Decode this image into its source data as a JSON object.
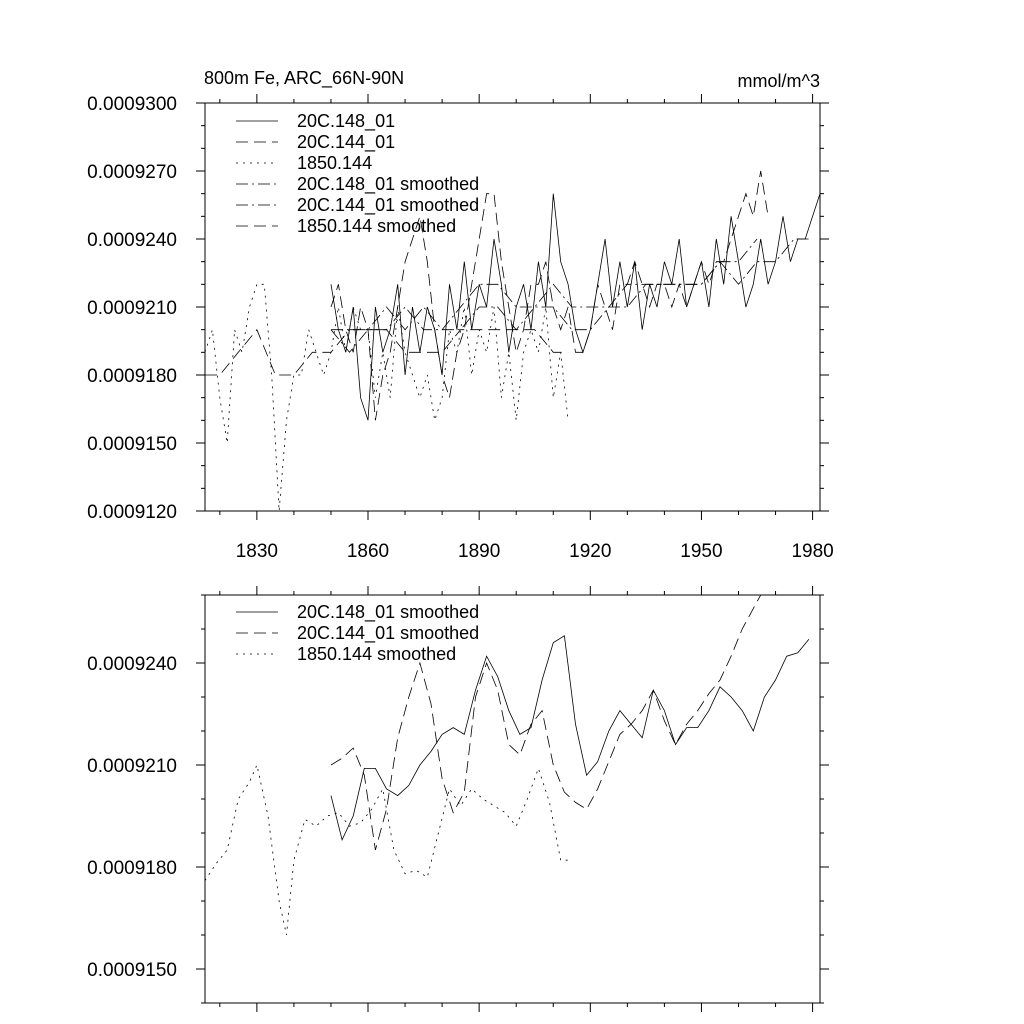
{
  "chart_data": [
    {
      "type": "line",
      "title": "800m Fe, ARC_66N-90N",
      "units": "mmol/m^3",
      "xlim": [
        1816,
        1982
      ],
      "ylim": [
        0.000912,
        0.00093
      ],
      "xticks": [
        1830,
        1860,
        1890,
        1920,
        1950,
        1980
      ],
      "xtick_labels": [
        "1830",
        "1860",
        "1890",
        "1920",
        "1950",
        "1980"
      ],
      "yticks": [
        0.000912,
        0.000915,
        0.000918,
        0.000921,
        0.000924,
        0.000927,
        0.00093
      ],
      "ytick_labels": [
        "0.0009120",
        "0.0009150",
        "0.0009180",
        "0.0009210",
        "0.0009240",
        "0.0009270",
        "0.0009300"
      ],
      "legend": [
        {
          "label": "20C.148_01",
          "dash": "solid"
        },
        {
          "label": "20C.144_01",
          "dash": "long"
        },
        {
          "label": "1850.144",
          "dash": "dot"
        },
        {
          "label": "20C.148_01 smoothed",
          "dash": "dashdot"
        },
        {
          "label": "20C.144_01 smoothed",
          "dash": "dashdot"
        },
        {
          "label": "1850.144 smoothed",
          "dash": "long"
        }
      ],
      "series": [
        {
          "name": "20C.148_01",
          "dash": "solid",
          "x": [
            1850,
            1852,
            1854,
            1856,
            1858,
            1860,
            1862,
            1864,
            1866,
            1868,
            1870,
            1872,
            1874,
            1876,
            1878,
            1880,
            1882,
            1884,
            1886,
            1888,
            1890,
            1892,
            1894,
            1896,
            1898,
            1900,
            1902,
            1904,
            1906,
            1908,
            1910,
            1912,
            1914,
            1916,
            1918,
            1920,
            1922,
            1924,
            1926,
            1928,
            1930,
            1932,
            1934,
            1936,
            1938,
            1940,
            1942,
            1944,
            1946,
            1948,
            1950,
            1952,
            1954,
            1956,
            1958,
            1960,
            1962,
            1964,
            1966,
            1968,
            1970,
            1972,
            1974,
            1976,
            1978,
            1980,
            1982
          ],
          "y": [
            0.000922,
            0.00092,
            0.000919,
            0.000921,
            0.000917,
            0.000916,
            0.000921,
            0.000919,
            0.00092,
            0.000922,
            0.000918,
            0.000921,
            0.000919,
            0.000921,
            0.00092,
            0.000918,
            0.000922,
            0.00092,
            0.000923,
            0.00092,
            0.000922,
            0.000921,
            0.000924,
            0.000922,
            0.000919,
            0.000921,
            0.000922,
            0.00092,
            0.000923,
            0.000921,
            0.000926,
            0.000923,
            0.000922,
            0.00092,
            0.000919,
            0.00092,
            0.000922,
            0.000924,
            0.000921,
            0.000923,
            0.000921,
            0.000923,
            0.00092,
            0.000922,
            0.000921,
            0.000923,
            0.000922,
            0.000924,
            0.000921,
            0.000922,
            0.000923,
            0.000921,
            0.000924,
            0.000922,
            0.000925,
            0.000923,
            0.000921,
            0.000922,
            0.000924,
            0.000922,
            0.000923,
            0.000925,
            0.000923,
            0.000924,
            0.000924,
            0.000925,
            0.000926
          ]
        },
        {
          "name": "20C.144_01",
          "dash": "long",
          "x": [
            1850,
            1852,
            1854,
            1856,
            1858,
            1860,
            1862,
            1864,
            1866,
            1868,
            1870,
            1872,
            1874,
            1876,
            1878,
            1880,
            1882,
            1884,
            1886,
            1888,
            1890,
            1892,
            1894,
            1896,
            1898,
            1900,
            1902,
            1904,
            1906,
            1908,
            1910,
            1912,
            1914,
            1916,
            1918,
            1920,
            1922,
            1924,
            1926,
            1928,
            1930,
            1932,
            1934,
            1936,
            1938,
            1940,
            1942,
            1944,
            1946,
            1948,
            1950,
            1952,
            1954,
            1956,
            1958,
            1960,
            1962,
            1964,
            1966,
            1968
          ],
          "y": [
            0.000921,
            0.000922,
            0.00092,
            0.000919,
            0.000921,
            0.00092,
            0.000916,
            0.000918,
            0.000919,
            0.000921,
            0.000923,
            0.000924,
            0.000925,
            0.000923,
            0.00092,
            0.000918,
            0.000917,
            0.000919,
            0.00092,
            0.000922,
            0.000924,
            0.000926,
            0.000926,
            0.000923,
            0.000921,
            0.000919,
            0.00092,
            0.000922,
            0.000922,
            0.000923,
            0.000921,
            0.00092,
            0.000921,
            0.000919,
            0.000919,
            0.00092,
            0.000922,
            0.000921,
            0.00092,
            0.000922,
            0.000922,
            0.000923,
            0.000922,
            0.000921,
            0.000922,
            0.000922,
            0.000921,
            0.000922,
            0.000921,
            0.000922,
            0.000923,
            0.000922,
            0.000923,
            0.000923,
            0.000924,
            0.000925,
            0.000926,
            0.000925,
            0.000927,
            0.000925
          ]
        },
        {
          "name": "1850.144",
          "dash": "dot",
          "x": [
            1816,
            1818,
            1820,
            1822,
            1824,
            1826,
            1828,
            1830,
            1832,
            1834,
            1836,
            1838,
            1840,
            1842,
            1844,
            1846,
            1848,
            1850,
            1852,
            1854,
            1856,
            1858,
            1860,
            1862,
            1864,
            1866,
            1868,
            1870,
            1872,
            1874,
            1876,
            1878,
            1880,
            1882,
            1884,
            1886,
            1888,
            1890,
            1892,
            1894,
            1896,
            1898,
            1900,
            1902,
            1904,
            1906,
            1908,
            1910,
            1912,
            1914
          ],
          "y": [
            0.000919,
            0.00092,
            0.000917,
            0.000915,
            0.00092,
            0.000919,
            0.000921,
            0.000922,
            0.000922,
            0.000918,
            0.000912,
            0.000916,
            0.000918,
            0.000918,
            0.00092,
            0.000919,
            0.000918,
            0.000919,
            0.000921,
            0.000919,
            0.000921,
            0.00092,
            0.00092,
            0.000917,
            0.000919,
            0.000917,
            0.000921,
            0.000919,
            0.000918,
            0.000917,
            0.000918,
            0.000916,
            0.000917,
            0.00092,
            0.000919,
            0.000921,
            0.000918,
            0.00092,
            0.000919,
            0.000921,
            0.000917,
            0.000919,
            0.000916,
            0.000919,
            0.00092,
            0.000919,
            0.000921,
            0.000917,
            0.000919,
            0.000916
          ]
        },
        {
          "name": "20C.148_01 smoothed",
          "dash": "dashdot",
          "x": [
            1850,
            1855,
            1860,
            1865,
            1870,
            1875,
            1880,
            1885,
            1890,
            1895,
            1900,
            1905,
            1910,
            1915,
            1920,
            1925,
            1930,
            1935,
            1940,
            1945,
            1950,
            1955,
            1960,
            1965,
            1970,
            1975,
            1980
          ],
          "y": [
            0.00092,
            0.000919,
            0.00092,
            0.00092,
            0.000921,
            0.00092,
            0.00092,
            0.000921,
            0.000922,
            0.000922,
            0.000921,
            0.000921,
            0.000922,
            0.000921,
            0.000921,
            0.000921,
            0.000922,
            0.000922,
            0.000922,
            0.000922,
            0.000922,
            0.000923,
            0.000922,
            0.000923,
            0.000923,
            0.000924,
            0.000924
          ]
        },
        {
          "name": "20C.144_01 smoothed",
          "dash": "dashdot",
          "x": [
            1850,
            1855,
            1860,
            1865,
            1870,
            1875,
            1880,
            1885,
            1890,
            1895,
            1900,
            1905,
            1910,
            1915,
            1920,
            1925,
            1930,
            1935,
            1940,
            1945,
            1950,
            1955,
            1960,
            1965
          ],
          "y": [
            0.00092,
            0.00092,
            0.00092,
            0.000921,
            0.00092,
            0.000921,
            0.00092,
            0.00092,
            0.000921,
            0.000921,
            0.00092,
            0.000921,
            0.000921,
            0.00092,
            0.00092,
            0.000921,
            0.000921,
            0.000922,
            0.000922,
            0.000922,
            0.000922,
            0.000923,
            0.000923,
            0.000924
          ]
        },
        {
          "name": "1850.144 smoothed",
          "dash": "long",
          "x": [
            1816,
            1820,
            1825,
            1830,
            1835,
            1840,
            1845,
            1850,
            1855,
            1860,
            1865,
            1870,
            1875,
            1880,
            1885,
            1890,
            1895,
            1900,
            1905,
            1910,
            1913
          ],
          "y": [
            0.000918,
            0.000918,
            0.000919,
            0.00092,
            0.000918,
            0.000918,
            0.000919,
            0.000919,
            0.00092,
            0.00092,
            0.00092,
            0.000919,
            0.000919,
            0.000919,
            0.00092,
            0.00092,
            0.00092,
            0.00092,
            0.00092,
            0.000919,
            0.000919
          ]
        }
      ]
    },
    {
      "type": "line",
      "xlim": [
        1816,
        1982
      ],
      "ylim": [
        0.000914,
        0.000926
      ],
      "xticks": [
        1830,
        1860,
        1890,
        1920,
        1950,
        1980
      ],
      "yticks": [
        0.000915,
        0.000918,
        0.000921,
        0.000924
      ],
      "ytick_labels": [
        "0.0009150",
        "0.0009180",
        "0.0009210",
        "0.0009240"
      ],
      "legend": [
        {
          "label": "20C.148_01 smoothed",
          "dash": "solid"
        },
        {
          "label": "20C.144_01 smoothed",
          "dash": "long"
        },
        {
          "label": "1850.144 smoothed",
          "dash": "dot"
        }
      ],
      "series": [
        {
          "name": "20C.148_01 smoothed",
          "dash": "solid",
          "x": [
            1850,
            1853,
            1856,
            1859,
            1862,
            1865,
            1868,
            1871,
            1874,
            1877,
            1880,
            1883,
            1886,
            1889,
            1892,
            1895,
            1898,
            1901,
            1904,
            1907,
            1910,
            1913,
            1916,
            1919,
            1922,
            1925,
            1928,
            1931,
            1934,
            1937,
            1940,
            1943,
            1946,
            1949,
            1952,
            1955,
            1958,
            1961,
            1964,
            1967,
            1970,
            1973,
            1976,
            1979
          ],
          "y": [
            0.0009201,
            0.0009188,
            0.0009195,
            0.0009209,
            0.0009209,
            0.0009203,
            0.0009201,
            0.0009204,
            0.000921,
            0.0009214,
            0.0009219,
            0.0009221,
            0.0009219,
            0.0009232,
            0.0009242,
            0.0009236,
            0.0009226,
            0.0009219,
            0.0009221,
            0.0009235,
            0.0009246,
            0.0009248,
            0.0009222,
            0.0009207,
            0.0009211,
            0.000922,
            0.0009226,
            0.0009222,
            0.0009218,
            0.0009232,
            0.0009226,
            0.0009216,
            0.0009221,
            0.0009221,
            0.0009226,
            0.0009233,
            0.000923,
            0.0009226,
            0.000922,
            0.000923,
            0.0009235,
            0.0009242,
            0.0009243,
            0.0009247
          ]
        },
        {
          "name": "20C.144_01 smoothed",
          "dash": "long",
          "x": [
            1850,
            1853,
            1856,
            1859,
            1862,
            1865,
            1868,
            1871,
            1874,
            1877,
            1880,
            1883,
            1886,
            1889,
            1892,
            1895,
            1898,
            1901,
            1904,
            1907,
            1910,
            1913,
            1916,
            1919,
            1922,
            1925,
            1928,
            1931,
            1934,
            1937,
            1940,
            1943,
            1946,
            1949,
            1952,
            1955,
            1958,
            1961,
            1964,
            1966
          ],
          "y": [
            0.000921,
            0.0009212,
            0.0009215,
            0.0009207,
            0.0009185,
            0.0009197,
            0.0009218,
            0.000923,
            0.000924,
            0.0009228,
            0.0009206,
            0.0009196,
            0.0009202,
            0.000923,
            0.000924,
            0.0009232,
            0.0009216,
            0.0009213,
            0.0009222,
            0.0009226,
            0.000921,
            0.0009202,
            0.0009199,
            0.0009197,
            0.0009203,
            0.0009211,
            0.0009219,
            0.0009222,
            0.0009226,
            0.0009232,
            0.0009223,
            0.0009216,
            0.0009222,
            0.0009226,
            0.0009231,
            0.0009235,
            0.0009242,
            0.000925,
            0.0009256,
            0.000926
          ]
        },
        {
          "name": "1850.144 smoothed",
          "dash": "dot",
          "x": [
            1816,
            1819,
            1822,
            1825,
            1828,
            1830,
            1833,
            1836,
            1838,
            1840,
            1843,
            1846,
            1849,
            1852,
            1855,
            1858,
            1861,
            1864,
            1867,
            1870,
            1873,
            1876,
            1879,
            1882,
            1885,
            1888,
            1891,
            1894,
            1897,
            1900,
            1903,
            1906,
            1909,
            1912,
            1914
          ],
          "y": [
            0.0009176,
            0.0009181,
            0.0009185,
            0.00092,
            0.0009205,
            0.000921,
            0.0009195,
            0.000917,
            0.000916,
            0.0009182,
            0.0009194,
            0.0009192,
            0.0009195,
            0.0009196,
            0.0009192,
            0.0009193,
            0.0009197,
            0.0009203,
            0.0009185,
            0.0009178,
            0.0009179,
            0.0009177,
            0.000919,
            0.0009203,
            0.0009198,
            0.0009203,
            0.00092,
            0.0009198,
            0.0009196,
            0.0009192,
            0.00092,
            0.0009209,
            0.0009199,
            0.0009182,
            0.0009182
          ]
        }
      ]
    }
  ]
}
